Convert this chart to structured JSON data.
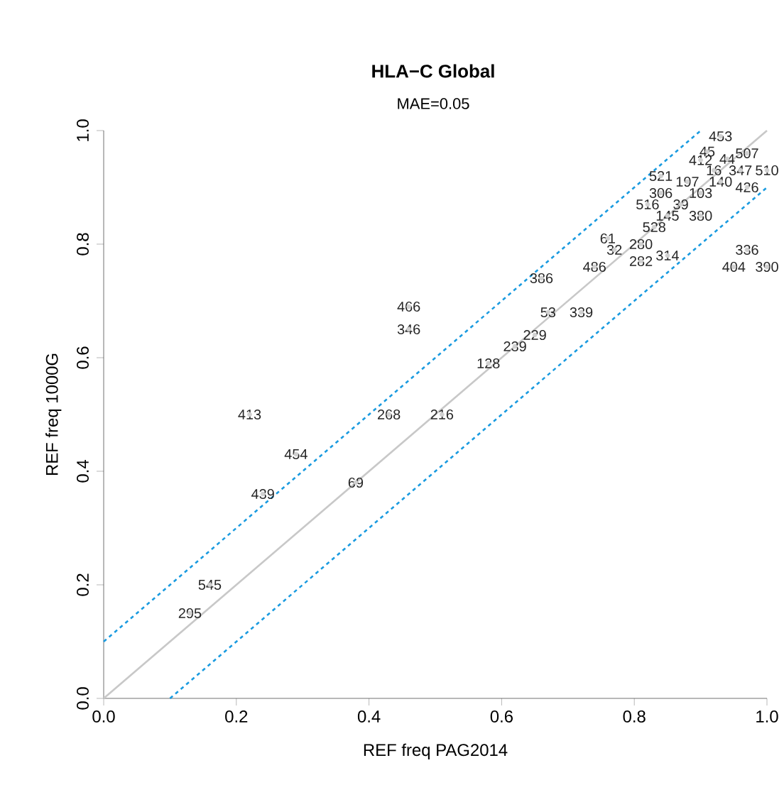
{
  "chart_data": {
    "type": "scatter",
    "title": "HLA−C Global",
    "subtitle": "MAE=0.05",
    "xlabel": "REF freq PAG2014",
    "ylabel": "REF freq 1000G",
    "xlim": [
      0,
      1
    ],
    "ylim": [
      0,
      1
    ],
    "xticks": [
      {
        "value": 0,
        "label": "0.0"
      },
      {
        "value": 0.2,
        "label": "0.2"
      },
      {
        "value": 0.4,
        "label": "0.4"
      },
      {
        "value": 0.6,
        "label": "0.6"
      },
      {
        "value": 0.8,
        "label": "0.8"
      },
      {
        "value": 1,
        "label": "1.0"
      }
    ],
    "yticks": [
      {
        "value": 0,
        "label": "0.0"
      },
      {
        "value": 0.2,
        "label": "0.2"
      },
      {
        "value": 0.4,
        "label": "0.4"
      },
      {
        "value": 0.6,
        "label": "0.6"
      },
      {
        "value": 0.8,
        "label": "0.8"
      },
      {
        "value": 1,
        "label": "1.0"
      }
    ],
    "grid": false,
    "series": [
      {
        "type": "line",
        "color": "#c8c8c8",
        "line_style": "solid",
        "x": [
          0,
          1
        ],
        "values": [
          0,
          1
        ]
      },
      {
        "type": "line",
        "color": "#1a9be0",
        "line_style": "dashed",
        "x": [
          0,
          0.9
        ],
        "values": [
          0.1,
          1
        ]
      },
      {
        "type": "line",
        "color": "#1a9be0",
        "line_style": "dashed",
        "x": [
          0.1,
          1
        ],
        "values": [
          0,
          0.9
        ]
      },
      {
        "marker": "circle",
        "color": "#d0d0d0",
        "x": [
          0.93,
          0.91,
          0.97,
          0.9,
          0.94,
          0.92,
          0.96,
          1.0,
          0.84,
          0.88,
          0.93,
          0.97,
          0.84,
          0.9,
          0.82,
          0.87,
          0.85,
          0.9,
          0.83,
          0.76,
          0.81,
          0.77,
          0.85,
          0.81,
          0.74,
          0.97,
          0.95,
          1.0,
          0.66,
          0.67,
          0.72,
          0.46,
          0.46,
          0.65,
          0.62,
          0.58,
          0.43,
          0.51,
          0.22,
          0.29,
          0.24,
          0.38,
          0.16,
          0.13
        ],
        "values": [
          0.99,
          0.963,
          0.96,
          0.948,
          0.95,
          0.93,
          0.93,
          0.93,
          0.92,
          0.91,
          0.91,
          0.9,
          0.89,
          0.89,
          0.87,
          0.87,
          0.85,
          0.85,
          0.83,
          0.81,
          0.8,
          0.79,
          0.78,
          0.77,
          0.76,
          0.79,
          0.76,
          0.76,
          0.74,
          0.68,
          0.68,
          0.69,
          0.65,
          0.64,
          0.62,
          0.59,
          0.5,
          0.5,
          0.5,
          0.43,
          0.36,
          0.38,
          0.2,
          0.15
        ]
      }
    ],
    "annotations": [
      {
        "text": "453",
        "x": 0.93,
        "y": 0.99
      },
      {
        "text": "45",
        "x": 0.91,
        "y": 0.963
      },
      {
        "text": "507",
        "x": 0.97,
        "y": 0.96
      },
      {
        "text": "412",
        "x": 0.9,
        "y": 0.948
      },
      {
        "text": "44",
        "x": 0.94,
        "y": 0.95
      },
      {
        "text": "16",
        "x": 0.92,
        "y": 0.93
      },
      {
        "text": "347",
        "x": 0.96,
        "y": 0.93
      },
      {
        "text": "510",
        "x": 1.0,
        "y": 0.93
      },
      {
        "text": "521",
        "x": 0.84,
        "y": 0.92
      },
      {
        "text": "197",
        "x": 0.88,
        "y": 0.91
      },
      {
        "text": "140",
        "x": 0.93,
        "y": 0.91
      },
      {
        "text": "426",
        "x": 0.97,
        "y": 0.9
      },
      {
        "text": "306",
        "x": 0.84,
        "y": 0.89
      },
      {
        "text": "103",
        "x": 0.9,
        "y": 0.89
      },
      {
        "text": "516",
        "x": 0.82,
        "y": 0.87
      },
      {
        "text": "39",
        "x": 0.87,
        "y": 0.87
      },
      {
        "text": "145",
        "x": 0.85,
        "y": 0.85
      },
      {
        "text": "380",
        "x": 0.9,
        "y": 0.85
      },
      {
        "text": "528",
        "x": 0.83,
        "y": 0.83
      },
      {
        "text": "61",
        "x": 0.76,
        "y": 0.81
      },
      {
        "text": "280",
        "x": 0.81,
        "y": 0.8
      },
      {
        "text": "32",
        "x": 0.77,
        "y": 0.79
      },
      {
        "text": "314",
        "x": 0.85,
        "y": 0.78
      },
      {
        "text": "282",
        "x": 0.81,
        "y": 0.77
      },
      {
        "text": "486",
        "x": 0.74,
        "y": 0.76
      },
      {
        "text": "336",
        "x": 0.97,
        "y": 0.79
      },
      {
        "text": "404",
        "x": 0.95,
        "y": 0.76
      },
      {
        "text": "390",
        "x": 1.0,
        "y": 0.76
      },
      {
        "text": "386",
        "x": 0.66,
        "y": 0.74
      },
      {
        "text": "53",
        "x": 0.67,
        "y": 0.68
      },
      {
        "text": "339",
        "x": 0.72,
        "y": 0.68
      },
      {
        "text": "466",
        "x": 0.46,
        "y": 0.69
      },
      {
        "text": "346",
        "x": 0.46,
        "y": 0.65
      },
      {
        "text": "229",
        "x": 0.65,
        "y": 0.64
      },
      {
        "text": "239",
        "x": 0.62,
        "y": 0.62
      },
      {
        "text": "128",
        "x": 0.58,
        "y": 0.59
      },
      {
        "text": "268",
        "x": 0.43,
        "y": 0.5
      },
      {
        "text": "216",
        "x": 0.51,
        "y": 0.5
      },
      {
        "text": "413",
        "x": 0.22,
        "y": 0.5
      },
      {
        "text": "454",
        "x": 0.29,
        "y": 0.43
      },
      {
        "text": "439",
        "x": 0.24,
        "y": 0.36
      },
      {
        "text": "69",
        "x": 0.38,
        "y": 0.38
      },
      {
        "text": "545",
        "x": 0.16,
        "y": 0.2
      },
      {
        "text": "295",
        "x": 0.13,
        "y": 0.15
      }
    ]
  }
}
